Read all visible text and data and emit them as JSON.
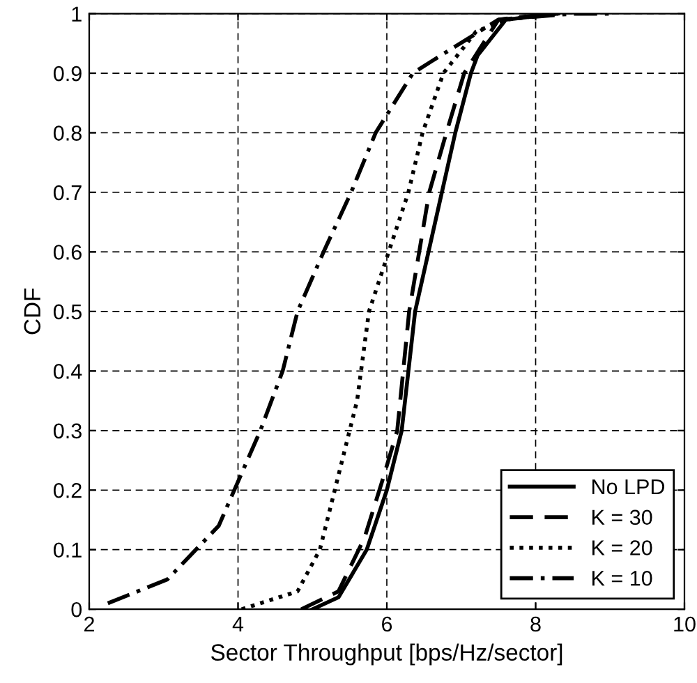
{
  "chart_data": {
    "type": "line",
    "xlabel": "Sector Throughput [bps/Hz/sector]",
    "ylabel": "CDF",
    "xlim": [
      2,
      10
    ],
    "xticks": [
      2,
      4,
      6,
      8,
      10
    ],
    "ylim": [
      0,
      1
    ],
    "yticks": [
      0,
      0.1,
      0.2,
      0.3,
      0.4,
      0.5,
      0.6,
      0.7,
      0.8,
      0.9,
      1
    ],
    "grid": true,
    "legend": "bottom right",
    "series": [
      {
        "name": "No LPD",
        "color": "#000000",
        "line_style": "solid",
        "x": [
          5.0,
          5.35,
          5.73,
          6.0,
          6.2,
          6.38,
          6.74,
          6.92,
          7.13,
          7.22,
          7.6,
          8.3
        ],
        "values": [
          0,
          0.02,
          0.1,
          0.2,
          0.3,
          0.5,
          0.7,
          0.8,
          0.9,
          0.93,
          0.99,
          1
        ]
      },
      {
        "name": "K = 30",
        "color": "#000000",
        "line_style": "dashed",
        "x": [
          4.85,
          5.35,
          5.7,
          5.95,
          6.14,
          6.3,
          6.57,
          6.8,
          7.04,
          7.5,
          8.2
        ],
        "values": [
          0,
          0.03,
          0.12,
          0.22,
          0.3,
          0.5,
          0.7,
          0.8,
          0.9,
          0.99,
          1
        ]
      },
      {
        "name": "K = 20",
        "color": "#000000",
        "line_style": "dotted",
        "x": [
          4.05,
          4.8,
          5.1,
          5.4,
          5.6,
          5.76,
          6.29,
          6.48,
          6.76,
          7.2,
          7.6,
          8.3
        ],
        "values": [
          0,
          0.03,
          0.1,
          0.25,
          0.35,
          0.5,
          0.7,
          0.8,
          0.9,
          0.97,
          0.99,
          1
        ]
      },
      {
        "name": "K = 10",
        "color": "#000000",
        "line_style": "dashdot",
        "x": [
          2.25,
          3.05,
          3.74,
          3.95,
          4.3,
          4.6,
          4.8,
          5.15,
          5.52,
          5.85,
          6.35,
          6.6,
          7.5,
          8.5,
          9.0
        ],
        "values": [
          0.01,
          0.05,
          0.14,
          0.2,
          0.3,
          0.4,
          0.5,
          0.6,
          0.7,
          0.8,
          0.9,
          0.92,
          0.99,
          1,
          1
        ]
      }
    ]
  }
}
